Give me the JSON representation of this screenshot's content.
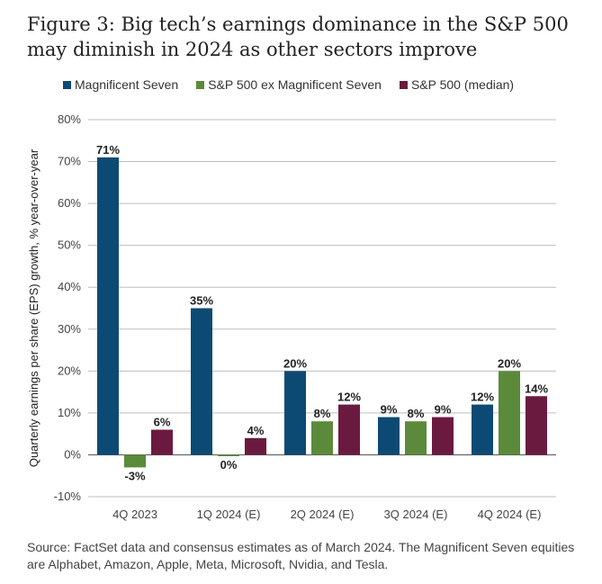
{
  "title": "Figure 3: Big tech’s earnings dominance in the S&P 500 may diminish in 2024 as other sectors improve",
  "footer": "Source: FactSet data and consensus estimates as of March 2024. The Magnificent Seven equities are Alphabet, Amazon, Apple, Meta, Microsoft, Nvidia, and Tesla.",
  "chart_data": {
    "type": "bar",
    "title": "Figure 3: Big tech’s earnings dominance in the S&P 500 may diminish in 2024 as other sectors improve",
    "ylabel": "Quarterly earnings per share (EPS) growth, % year-over-year",
    "xlabel": "",
    "categories": [
      "4Q 2023",
      "1Q 2024 (E)",
      "2Q 2024 (E)",
      "3Q 2024 (E)",
      "4Q 2024 (E)"
    ],
    "ylim": [
      -10,
      80
    ],
    "yticks": [
      -10,
      0,
      10,
      20,
      30,
      40,
      50,
      60,
      70,
      80
    ],
    "ytick_labels": [
      "-10%",
      "0%",
      "10%",
      "20%",
      "30%",
      "40%",
      "50%",
      "60%",
      "70%",
      "80%"
    ],
    "grid": true,
    "legend_position": "top",
    "series": [
      {
        "name": "Magnificent Seven",
        "color": "#0d4a73",
        "values": [
          71,
          35,
          20,
          9,
          12
        ],
        "labels": [
          "71%",
          "35%",
          "20%",
          "9%",
          "12%"
        ]
      },
      {
        "name": "S&P 500 ex Magnificent Seven",
        "color": "#5b8a3a",
        "values": [
          -3,
          -0.3,
          8,
          8,
          20
        ],
        "labels": [
          "-3%",
          "0%",
          "8%",
          "8%",
          "20%"
        ]
      },
      {
        "name": "S&P 500 (median)",
        "color": "#6b1a3f",
        "values": [
          6,
          4,
          12,
          9,
          14
        ],
        "labels": [
          "6%",
          "4%",
          "12%",
          "9%",
          "14%"
        ]
      }
    ]
  }
}
